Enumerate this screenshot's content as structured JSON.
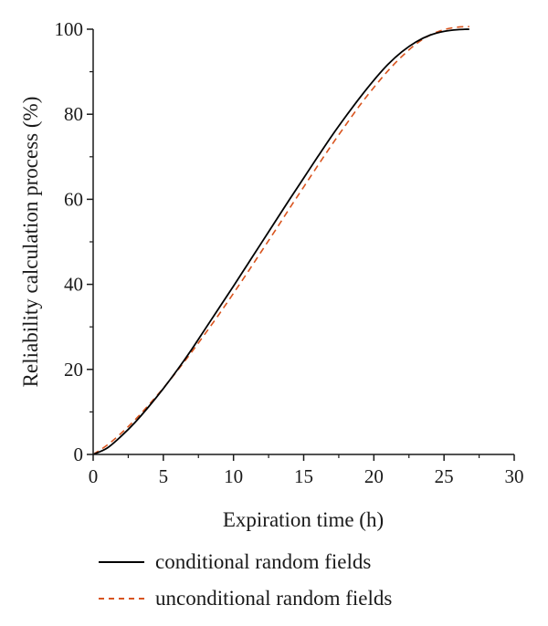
{
  "chart_data": {
    "type": "line",
    "title": "",
    "xlabel": "Expiration time (h)",
    "ylabel": "Reliability calculation process (%)",
    "xlim": [
      0,
      30
    ],
    "ylim": [
      0,
      100
    ],
    "xticks": [
      0,
      5,
      10,
      15,
      20,
      25,
      30
    ],
    "yticks": [
      0,
      20,
      40,
      60,
      80,
      100
    ],
    "grid": false,
    "legend_position": "bottom",
    "series": [
      {
        "name": "conditional random fields",
        "color": "#000000",
        "style": "solid",
        "x": [
          0,
          1,
          2,
          3,
          4,
          5,
          6,
          7,
          8,
          9,
          10,
          11,
          12,
          13,
          14,
          15,
          16,
          17,
          18,
          19,
          20,
          21,
          22,
          23,
          24,
          25,
          26,
          26.8
        ],
        "y": [
          0,
          1.5,
          4.3,
          7.6,
          11.4,
          15.5,
          19.9,
          24.6,
          29.6,
          34.6,
          39.6,
          44.7,
          49.8,
          54.9,
          60.0,
          65.0,
          70.0,
          74.9,
          79.5,
          83.9,
          88.0,
          91.7,
          94.7,
          97.0,
          98.6,
          99.5,
          99.9,
          100.0
        ]
      },
      {
        "name": "unconditional random fields",
        "color": "#d9541e",
        "style": "dashed",
        "x": [
          0,
          1,
          2,
          3,
          4,
          5,
          6,
          7,
          8,
          9,
          10,
          11,
          12,
          13,
          14,
          15,
          16,
          17,
          18,
          19,
          20,
          21,
          22,
          23,
          24,
          25,
          26,
          26.8
        ],
        "y": [
          0,
          2.2,
          5.0,
          8.2,
          11.8,
          15.6,
          19.7,
          24.0,
          28.5,
          33.1,
          37.9,
          42.8,
          47.8,
          52.8,
          57.9,
          62.9,
          67.9,
          72.8,
          77.5,
          82.1,
          86.3,
          90.2,
          93.6,
          96.5,
          98.6,
          99.9,
          100.5,
          100.6
        ]
      }
    ]
  }
}
